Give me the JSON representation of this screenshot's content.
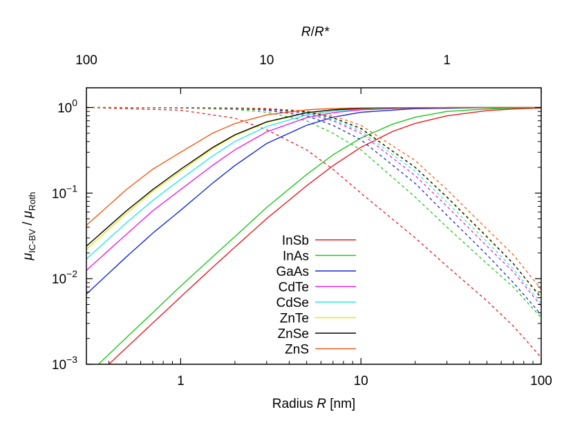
{
  "chart_data": {
    "type": "line",
    "xlabel_prefix": "Radius ",
    "xlabel_var": "R",
    "xlabel_unit": " [nm]",
    "top_label_var1": "R",
    "top_label_sep": "/",
    "top_label_var2": "R*",
    "ylabel_mu": "μ",
    "ylabel_sub1": "IC-BV",
    "ylabel_sep": " / ",
    "ylabel_sub2": "Roth",
    "xscale": "log",
    "yscale": "log",
    "xlim": [
      0.3,
      100
    ],
    "ylim": [
      0.001,
      1.7
    ],
    "x_ticks": [
      {
        "value": 1,
        "label": "1"
      },
      {
        "value": 10,
        "label": "10"
      },
      {
        "value": 100,
        "label": "100"
      }
    ],
    "y_ticks": [
      {
        "value": 0.001,
        "base": "10",
        "exp": "−3"
      },
      {
        "value": 0.01,
        "base": "10",
        "exp": "−2"
      },
      {
        "value": 0.1,
        "base": "10",
        "exp": "−1"
      },
      {
        "value": 1,
        "base": "10",
        "exp": "0"
      }
    ],
    "top_ticks": [
      {
        "label": "100",
        "at_radius": 0.3
      },
      {
        "label": "10",
        "at_radius": 3.0
      },
      {
        "label": "1",
        "at_radius": 30
      }
    ],
    "legend_position": "center-left",
    "series": [
      {
        "name": "InSb",
        "color": "#e8191e",
        "solid": [
          [
            0.4,
            0.001
          ],
          [
            0.5,
            0.00156
          ],
          [
            0.7,
            0.00303
          ],
          [
            1,
            0.00612
          ],
          [
            1.5,
            0.0135
          ],
          [
            2,
            0.0234
          ],
          [
            3,
            0.0503
          ],
          [
            5,
            0.122
          ],
          [
            7,
            0.209
          ],
          [
            10,
            0.343
          ],
          [
            15,
            0.525
          ],
          [
            20,
            0.652
          ],
          [
            30,
            0.8
          ],
          [
            50,
            0.92
          ],
          [
            70,
            0.96
          ],
          [
            100,
            0.985
          ]
        ],
        "dashed": [
          [
            0.3,
            1.0
          ],
          [
            1,
            0.93
          ],
          [
            2,
            0.75
          ],
          [
            3,
            0.55
          ],
          [
            5,
            0.32
          ],
          [
            7,
            0.19
          ],
          [
            10,
            0.1
          ],
          [
            20,
            0.03
          ],
          [
            30,
            0.014
          ],
          [
            50,
            0.0055
          ],
          [
            70,
            0.0028
          ],
          [
            100,
            0.0012
          ]
        ]
      },
      {
        "name": "InAs",
        "color": "#19c819",
        "solid": [
          [
            0.35,
            0.001
          ],
          [
            0.5,
            0.00205
          ],
          [
            0.7,
            0.004
          ],
          [
            1,
            0.0082
          ],
          [
            1.5,
            0.0179
          ],
          [
            2,
            0.031
          ],
          [
            3,
            0.068
          ],
          [
            5,
            0.165
          ],
          [
            7,
            0.28
          ],
          [
            10,
            0.44
          ],
          [
            15,
            0.64
          ],
          [
            20,
            0.77
          ],
          [
            30,
            0.9
          ],
          [
            50,
            0.96
          ],
          [
            70,
            0.985
          ],
          [
            100,
            0.995
          ]
        ],
        "dashed": [
          [
            0.3,
            1.0
          ],
          [
            1,
            0.99
          ],
          [
            2,
            0.95
          ],
          [
            3,
            0.88
          ],
          [
            5,
            0.7
          ],
          [
            7,
            0.5
          ],
          [
            10,
            0.32
          ],
          [
            20,
            0.09
          ],
          [
            30,
            0.04
          ],
          [
            50,
            0.015
          ],
          [
            70,
            0.008
          ],
          [
            100,
            0.0035
          ]
        ]
      },
      {
        "name": "GaAs",
        "color": "#1428d2",
        "solid": [
          [
            0.3,
            0.0066
          ],
          [
            0.5,
            0.018
          ],
          [
            0.7,
            0.034
          ],
          [
            1,
            0.063
          ],
          [
            1.5,
            0.13
          ],
          [
            2,
            0.21
          ],
          [
            3,
            0.38
          ],
          [
            5,
            0.62
          ],
          [
            7,
            0.77
          ],
          [
            10,
            0.88
          ],
          [
            20,
            0.97
          ],
          [
            50,
            0.995
          ],
          [
            100,
            1.0
          ]
        ],
        "dashed": [
          [
            0.3,
            1.0
          ],
          [
            1,
            0.99
          ],
          [
            2,
            0.97
          ],
          [
            3,
            0.93
          ],
          [
            5,
            0.8
          ],
          [
            7,
            0.62
          ],
          [
            10,
            0.42
          ],
          [
            20,
            0.13
          ],
          [
            30,
            0.055
          ],
          [
            50,
            0.019
          ],
          [
            70,
            0.009
          ],
          [
            100,
            0.0038
          ]
        ]
      },
      {
        "name": "CdTe",
        "color": "#e61ee6",
        "solid": [
          [
            0.3,
            0.0125
          ],
          [
            0.5,
            0.033
          ],
          [
            0.7,
            0.062
          ],
          [
            1,
            0.11
          ],
          [
            1.5,
            0.21
          ],
          [
            2,
            0.32
          ],
          [
            3,
            0.52
          ],
          [
            5,
            0.76
          ],
          [
            7,
            0.87
          ],
          [
            10,
            0.94
          ],
          [
            20,
            0.99
          ],
          [
            50,
            1.0
          ],
          [
            100,
            1.0
          ]
        ],
        "dashed": [
          [
            0.3,
            1.0
          ],
          [
            1,
            0.995
          ],
          [
            2,
            0.98
          ],
          [
            3,
            0.95
          ],
          [
            5,
            0.85
          ],
          [
            7,
            0.7
          ],
          [
            10,
            0.5
          ],
          [
            20,
            0.16
          ],
          [
            30,
            0.07
          ],
          [
            50,
            0.024
          ],
          [
            70,
            0.012
          ],
          [
            100,
            0.0048
          ]
        ]
      },
      {
        "name": "CdSe",
        "color": "#28e6e6",
        "solid": [
          [
            0.3,
            0.017
          ],
          [
            0.5,
            0.045
          ],
          [
            0.7,
            0.082
          ],
          [
            1,
            0.145
          ],
          [
            1.5,
            0.27
          ],
          [
            2,
            0.4
          ],
          [
            3,
            0.6
          ],
          [
            5,
            0.82
          ],
          [
            7,
            0.91
          ],
          [
            10,
            0.96
          ],
          [
            20,
            0.995
          ],
          [
            50,
            1.0
          ],
          [
            100,
            1.0
          ]
        ],
        "dashed": [
          [
            0.3,
            1.0
          ],
          [
            1,
            0.996
          ],
          [
            2,
            0.98
          ],
          [
            3,
            0.96
          ],
          [
            5,
            0.87
          ],
          [
            7,
            0.72
          ],
          [
            10,
            0.53
          ],
          [
            20,
            0.18
          ],
          [
            30,
            0.078
          ],
          [
            50,
            0.027
          ],
          [
            70,
            0.013
          ],
          [
            100,
            0.0052
          ]
        ]
      },
      {
        "name": "ZnTe",
        "color": "#e6e614",
        "solid": [
          [
            0.3,
            0.022
          ],
          [
            0.5,
            0.058
          ],
          [
            0.7,
            0.105
          ],
          [
            1,
            0.18
          ],
          [
            1.5,
            0.33
          ],
          [
            2,
            0.47
          ],
          [
            3,
            0.67
          ],
          [
            5,
            0.87
          ],
          [
            7,
            0.94
          ],
          [
            10,
            0.975
          ],
          [
            20,
            0.997
          ],
          [
            50,
            1.0
          ],
          [
            100,
            1.0
          ]
        ],
        "dashed": [
          [
            0.3,
            1.0
          ],
          [
            1,
            0.997
          ],
          [
            2,
            0.985
          ],
          [
            3,
            0.965
          ],
          [
            5,
            0.89
          ],
          [
            7,
            0.75
          ],
          [
            10,
            0.56
          ],
          [
            20,
            0.2
          ],
          [
            30,
            0.088
          ],
          [
            50,
            0.03
          ],
          [
            70,
            0.015
          ],
          [
            100,
            0.0058
          ]
        ]
      },
      {
        "name": "ZnSe",
        "color": "#000000",
        "solid": [
          [
            0.3,
            0.024
          ],
          [
            0.5,
            0.062
          ],
          [
            0.7,
            0.11
          ],
          [
            1,
            0.19
          ],
          [
            1.5,
            0.34
          ],
          [
            2,
            0.48
          ],
          [
            3,
            0.68
          ],
          [
            5,
            0.87
          ],
          [
            7,
            0.94
          ],
          [
            10,
            0.975
          ],
          [
            20,
            0.997
          ],
          [
            50,
            1.0
          ],
          [
            100,
            1.0
          ]
        ],
        "dashed": [
          [
            0.3,
            1.0
          ],
          [
            1,
            0.997
          ],
          [
            2,
            0.985
          ],
          [
            3,
            0.965
          ],
          [
            5,
            0.89
          ],
          [
            7,
            0.76
          ],
          [
            10,
            0.57
          ],
          [
            20,
            0.2
          ],
          [
            30,
            0.09
          ],
          [
            50,
            0.031
          ],
          [
            70,
            0.015
          ],
          [
            100,
            0.006
          ]
        ]
      },
      {
        "name": "ZnS",
        "color": "#f05a14",
        "solid": [
          [
            0.3,
            0.042
          ],
          [
            0.5,
            0.11
          ],
          [
            0.7,
            0.19
          ],
          [
            1,
            0.3
          ],
          [
            1.5,
            0.5
          ],
          [
            2,
            0.65
          ],
          [
            3,
            0.82
          ],
          [
            5,
            0.94
          ],
          [
            7,
            0.975
          ],
          [
            10,
            0.99
          ],
          [
            20,
            1.0
          ],
          [
            50,
            1.0
          ],
          [
            100,
            1.0
          ]
        ],
        "dashed": [
          [
            0.3,
            1.0
          ],
          [
            1,
            0.998
          ],
          [
            2,
            0.99
          ],
          [
            3,
            0.975
          ],
          [
            5,
            0.91
          ],
          [
            7,
            0.8
          ],
          [
            10,
            0.62
          ],
          [
            20,
            0.24
          ],
          [
            30,
            0.11
          ],
          [
            50,
            0.038
          ],
          [
            70,
            0.019
          ],
          [
            100,
            0.0075
          ]
        ]
      }
    ]
  }
}
